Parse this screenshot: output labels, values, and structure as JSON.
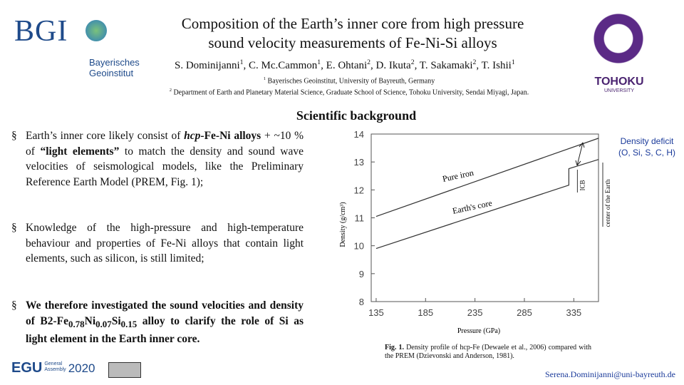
{
  "header": {
    "title": [
      "Composition of the Earth’s inner core from high pressure",
      "sound velocity measurements of Fe-Ni-Si alloys"
    ],
    "authors": [
      {
        "name": "S. Dominijanni",
        "sup": "1"
      },
      {
        "name": ", C. Mc.Cammon",
        "sup": "1"
      },
      {
        "name": ", E. Ohtani",
        "sup": "2"
      },
      {
        "name": ", D. Ikuta",
        "sup": "2"
      },
      {
        "name": ", T. Sakamaki",
        "sup": "2"
      },
      {
        "name": ", T. Ishii",
        "sup": "1"
      }
    ],
    "affiliations": [
      {
        "sup": "1",
        "text": "Bayerisches Geoinstitut, University of Bayreuth, Germany"
      },
      {
        "sup": "2",
        "text": "Department of Earth and Planetary Material Science, Graduate School of Science, Tohoku University, Sendai Miyagi, Japan."
      }
    ],
    "logo_left": {
      "acronym": "BGI",
      "name": [
        "Bayerisches",
        "Geoinstitut"
      ]
    },
    "logo_right": {
      "name": "TOHOKU",
      "sub": "UNIVERSITY"
    }
  },
  "section_title": "Scientific background",
  "bullets": [
    [
      {
        "text": "Earth’s inner core likely consist of ",
        "style": "normal"
      },
      {
        "text": "hcp",
        "style": "bold-italic"
      },
      {
        "text": "-Fe-Ni alloys",
        "style": "bold"
      },
      {
        "text": " + ~10 % of ",
        "style": "normal"
      },
      {
        "text": "“light elements”",
        "style": "bold"
      },
      {
        "text": " to match the density and sound wave velocities of seismological models, like the Preliminary Reference Earth Model (PREM, Fig. 1);",
        "style": "normal"
      }
    ],
    [
      {
        "text": "Knowledge of the high-pressure and high-temperature behaviour and properties of Fe-Ni alloys that contain light elements, such as silicon, is still limited;",
        "style": "normal"
      }
    ],
    [
      {
        "text": "We therefore investigated the sound velocities and density of B2-Fe",
        "style": "bold"
      },
      {
        "text": "0.78",
        "style": "bold-sub"
      },
      {
        "text": "Ni",
        "style": "bold"
      },
      {
        "text": "0.07",
        "style": "bold-sub"
      },
      {
        "text": "Si",
        "style": "bold"
      },
      {
        "text": "0.15",
        "style": "bold-sub"
      },
      {
        "text": " alloy to clarify the role of Si as light element in the Earth inner core.",
        "style": "bold"
      }
    ]
  ],
  "chart_data": {
    "type": "line",
    "x_label": "Pressure (GPa)",
    "y_label": "Density (g/cm³)",
    "xlim": [
      130,
      360
    ],
    "xticks": [
      135,
      185,
      235,
      285,
      335
    ],
    "ylim": [
      8,
      14
    ],
    "yticks": [
      8,
      9,
      10,
      11,
      12,
      13,
      14
    ],
    "series": [
      {
        "name": "Pure iron",
        "color": "#333333",
        "x": [
          135,
          360
        ],
        "values": [
          11.05,
          13.85
        ]
      },
      {
        "name": "Earth's core",
        "color": "#333333",
        "x": [
          135,
          330,
          330,
          360
        ],
        "values": [
          9.9,
          12.17,
          12.76,
          13.09
        ]
      }
    ],
    "annotations": {
      "icb": "ICB",
      "center": "center of the Earth",
      "deficit": [
        "Density deficit",
        "(O, Si, S, C, H)"
      ]
    }
  },
  "caption": {
    "label": "Fig. 1.",
    "text": "Density profile of hcp-Fe (Dewaele et al., 2006) compared with the PREM (Dzievonski and Anderson, 1981)."
  },
  "footer": {
    "egu": "EGU",
    "egu_sub": [
      "General",
      "Assembly"
    ],
    "year": "2020",
    "email": "Serena.Dominijanni@uni-bayreuth.de"
  }
}
